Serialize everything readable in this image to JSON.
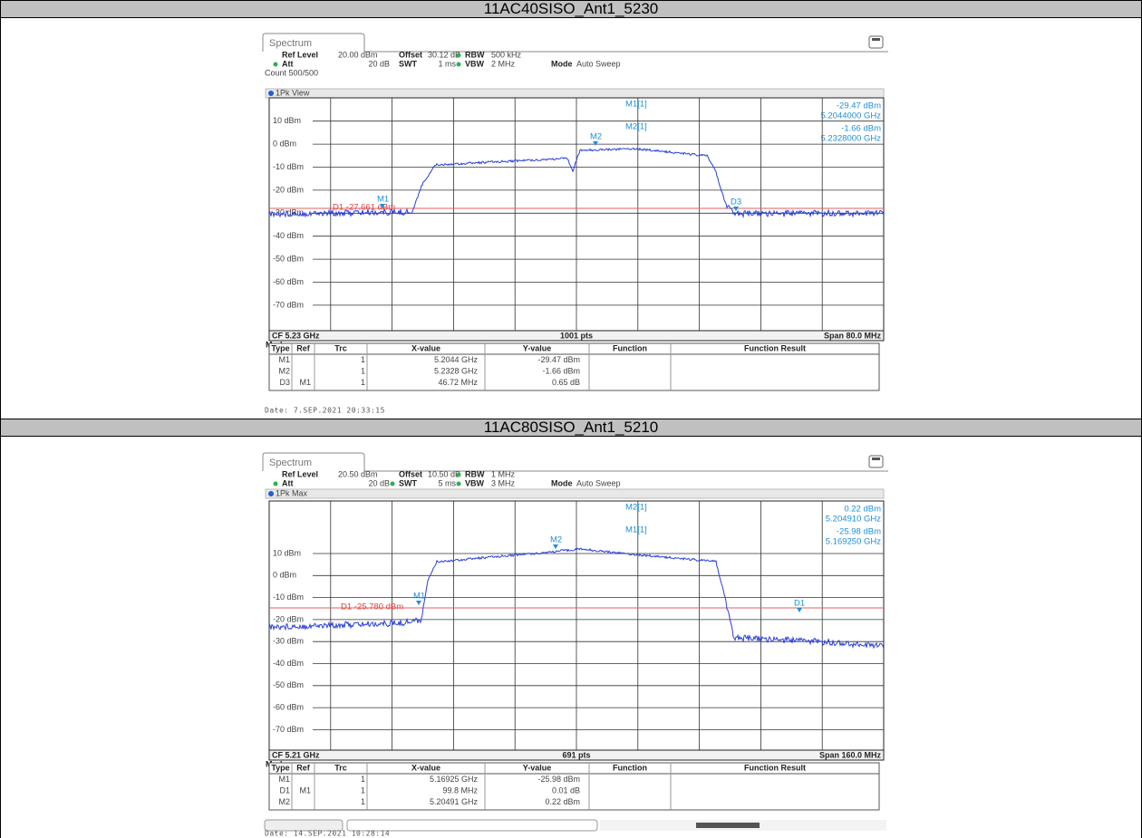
{
  "table": {
    "rows": [
      {
        "title": "11AC40SISO_Ant1_5230",
        "screen": {
          "tab": "Spectrum",
          "settings": [
            {
              "label": "Ref Level",
              "value": "20.00 dBm"
            },
            {
              "label": "Offset",
              "value": "30.12 dB"
            },
            {
              "label": "RBW",
              "value": "500 kHz",
              "indicator": true
            },
            {
              "label": "Att",
              "value": "20 dB",
              "indicator": true
            },
            {
              "label": "SWT",
              "value": "1 ms"
            },
            {
              "label": "VBW",
              "value": "2 MHz",
              "indicator": true
            },
            {
              "label": "Mode",
              "value": "Auto Sweep"
            }
          ],
          "count": "Count 500/500",
          "view": "1Pk View",
          "readouts": [
            {
              "name": "M1[1]",
              "level": "-29.47 dBm",
              "freq": "5.2044000 GHz"
            },
            {
              "name": "M2[1]",
              "level": "-1.66 dBm",
              "freq": "5.2328000 GHz"
            }
          ],
          "y_labels": [
            "10 dBm",
            "0 dBm",
            "-10 dBm",
            "-20 dBm",
            "-30 dBm",
            "-40 dBm",
            "-50 dBm",
            "-60 dBm",
            "-70 dBm"
          ],
          "markers": [
            "M1",
            "M2",
            "D3"
          ],
          "line_label": "D1 -27.661 dBm",
          "footer": {
            "center_freq": "CF 5.23 GHz",
            "points": "1001 pts",
            "span": "Span 80.0 MHz"
          },
          "marker_table": {
            "title": "Marker",
            "columns": [
              "Type",
              "Ref",
              "Trc",
              "X-value",
              "Y-value",
              "Function",
              "Function Result"
            ],
            "rows": [
              [
                "M1",
                null,
                "1",
                "5.2044 GHz",
                "-29.47 dBm"
              ],
              [
                "M2",
                null,
                "1",
                "5.2328 GHz",
                "-1.66 dBm"
              ],
              [
                "D3",
                "M1",
                "1",
                "46.72 MHz",
                "0.65 dB"
              ]
            ]
          },
          "date": "Date: 7.SEP.2021  20:33:15"
        }
      },
      {
        "title": "11AC80SISO_Ant1_5210",
        "screen": {
          "tab": "Spectrum",
          "settings": [
            {
              "label": "Ref Level",
              "value": "20.50 dBm"
            },
            {
              "label": "Offset",
              "value": "10.50 dB"
            },
            {
              "label": "RBW",
              "value": "1 MHz",
              "indicator": true
            },
            {
              "label": "Att",
              "value": "20 dB",
              "indicator": true
            },
            {
              "label": "SWT",
              "value": "5 ms",
              "indicator": true
            },
            {
              "label": "VBW",
              "value": "3 MHz",
              "indicator": true
            },
            {
              "label": "Mode",
              "value": "Auto Sweep"
            }
          ],
          "view": "1Pk Max",
          "readouts": [
            {
              "name": "M2[1]",
              "level": "0.22 dBm",
              "freq": "5.204910 GHz"
            },
            {
              "name": "M1[1]",
              "level": "-25.98 dBm",
              "freq": "5.169250 GHz"
            }
          ],
          "y_labels": [
            "10 dBm",
            "0 dBm",
            "-10 dBm",
            "-20 dBm",
            "-30 dBm",
            "-40 dBm",
            "-50 dBm",
            "-60 dBm",
            "-70 dBm"
          ],
          "markers": [
            "M1",
            "M2",
            "D1"
          ],
          "line_label": "D1 -25.780 dBm",
          "footer": {
            "center_freq": "CF 5.21 GHz",
            "points": "691 pts",
            "span": "Span 160.0 MHz"
          },
          "marker_table": {
            "title": "Marker",
            "columns": [
              "Type",
              "Ref",
              "Trc",
              "X-value",
              "Y-value",
              "Function",
              "Function Result"
            ],
            "rows": [
              [
                "M1",
                null,
                "1",
                "5.16925 GHz",
                "-25.98 dBm"
              ],
              [
                "D1",
                "M1",
                "1",
                "99.8 MHz",
                "0.01 dB"
              ],
              [
                "M2",
                null,
                "1",
                "5.20491 GHz",
                "0.22 dBm"
              ]
            ]
          },
          "date": "Date: 14.SEP.2021  10:28:14"
        }
      }
    ]
  }
}
